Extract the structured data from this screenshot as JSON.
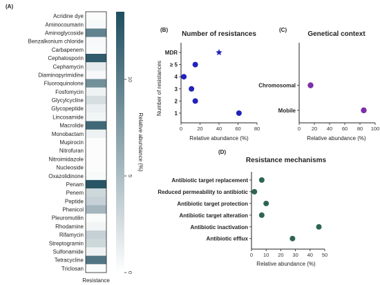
{
  "panels": {
    "A": {
      "tag": "(A)",
      "xlabel": "Resistance",
      "colorbar_label": "Relative abundance (%)",
      "colorbar_ticks": [
        "0",
        "5",
        "10"
      ],
      "colorbar_tick_values": [
        0,
        5,
        10
      ],
      "colorbar_max": 13.5,
      "colors": {
        "low": "#ffffff",
        "high": "#1f4e5f"
      }
    },
    "B": {
      "tag": "(B)"
    },
    "C": {
      "tag": "(C)"
    },
    "D": {
      "tag": "(D)"
    }
  },
  "chart_data": [
    {
      "panel": "A",
      "type": "heatmap",
      "xlabel": "Resistance",
      "colorbar_label": "Relative abundance (%)",
      "categories": [
        "Acridine dye",
        "Aminocoumarin",
        "Aminoglycoside",
        "Benzalkonium chloride",
        "Carbapenem",
        "Cephalosporin",
        "Cephamycin",
        "Diaminopyrimidine",
        "Fluoroquinolone",
        "Fosfomycin",
        "Glycylcycline",
        "Glycopeptide",
        "Lincosamide",
        "Macrolide",
        "Monobactam",
        "Mupirocin",
        "Nitrofuran",
        "Nitroimidazole",
        "Nucleoside",
        "Oxazolidinone",
        "Penam",
        "Penem",
        "Peptide",
        "Phenicol",
        "Pleuromutilin",
        "Rhodamine",
        "Rifamycin",
        "Streptogramin",
        "Sulfonamide",
        "Tetracycline",
        "Triclosan"
      ],
      "values": [
        0.3,
        0.5,
        9.5,
        0.5,
        0.4,
        12.5,
        1.5,
        0.5,
        8.5,
        1.0,
        2.5,
        1.2,
        0.8,
        11.5,
        1.0,
        0.2,
        0.2,
        0.2,
        0.2,
        0.4,
        13.0,
        3.0,
        3.5,
        5.5,
        0.3,
        0.8,
        3.5,
        3.0,
        1.0,
        10.5,
        0.3
      ]
    },
    {
      "panel": "B",
      "type": "scatter",
      "title": "Number of resistances",
      "xlabel": "Relative abundance (%)",
      "ylabel": "Number of resistances",
      "xlim": [
        0,
        80
      ],
      "xticks": [
        0,
        20,
        40,
        60,
        80
      ],
      "ytick_labels": [
        "1",
        "2",
        "3",
        "4",
        "≥ 5",
        "MDR"
      ],
      "color": "#2222bb",
      "points": [
        {
          "y": "1",
          "x": 61
        },
        {
          "y": "2",
          "x": 15
        },
        {
          "y": "3",
          "x": 11
        },
        {
          "y": "4",
          "x": 3
        },
        {
          "y": "≥ 5",
          "x": 15
        },
        {
          "y": "MDR",
          "x": 40,
          "marker": "star"
        }
      ]
    },
    {
      "panel": "C",
      "type": "scatter",
      "title": "Genetical context",
      "xlabel": "Relative abundance (%)",
      "xlim": [
        0,
        100
      ],
      "xticks": [
        0,
        20,
        40,
        60,
        80,
        100
      ],
      "ytick_labels": [
        "Mobile",
        "Chromosomal"
      ],
      "color": "#7b2fa8",
      "points": [
        {
          "y": "Chromosomal",
          "x": 15
        },
        {
          "y": "Mobile",
          "x": 85
        }
      ]
    },
    {
      "panel": "D",
      "type": "scatter",
      "title": "Resistance mechanisms",
      "xlabel": "Relative abundance (%)",
      "xlim": [
        0,
        50
      ],
      "xticks": [
        0,
        10,
        20,
        30,
        40,
        50
      ],
      "ytick_labels": [
        "Antibiotic efflux",
        "Antibiotic inactivation",
        "Antibiotic target alteration",
        "Antibiotic target protection",
        "Reduced permeability to antibiotic",
        "Antibiotic target replacement"
      ],
      "color": "#2d6650",
      "points": [
        {
          "y": "Antibiotic target replacement",
          "x": 7
        },
        {
          "y": "Reduced permeability to antibiotic",
          "x": 2
        },
        {
          "y": "Antibiotic target protection",
          "x": 10
        },
        {
          "y": "Antibiotic target alteration",
          "x": 7
        },
        {
          "y": "Antibiotic inactivation",
          "x": 46
        },
        {
          "y": "Antibiotic efflux",
          "x": 28
        }
      ]
    }
  ]
}
